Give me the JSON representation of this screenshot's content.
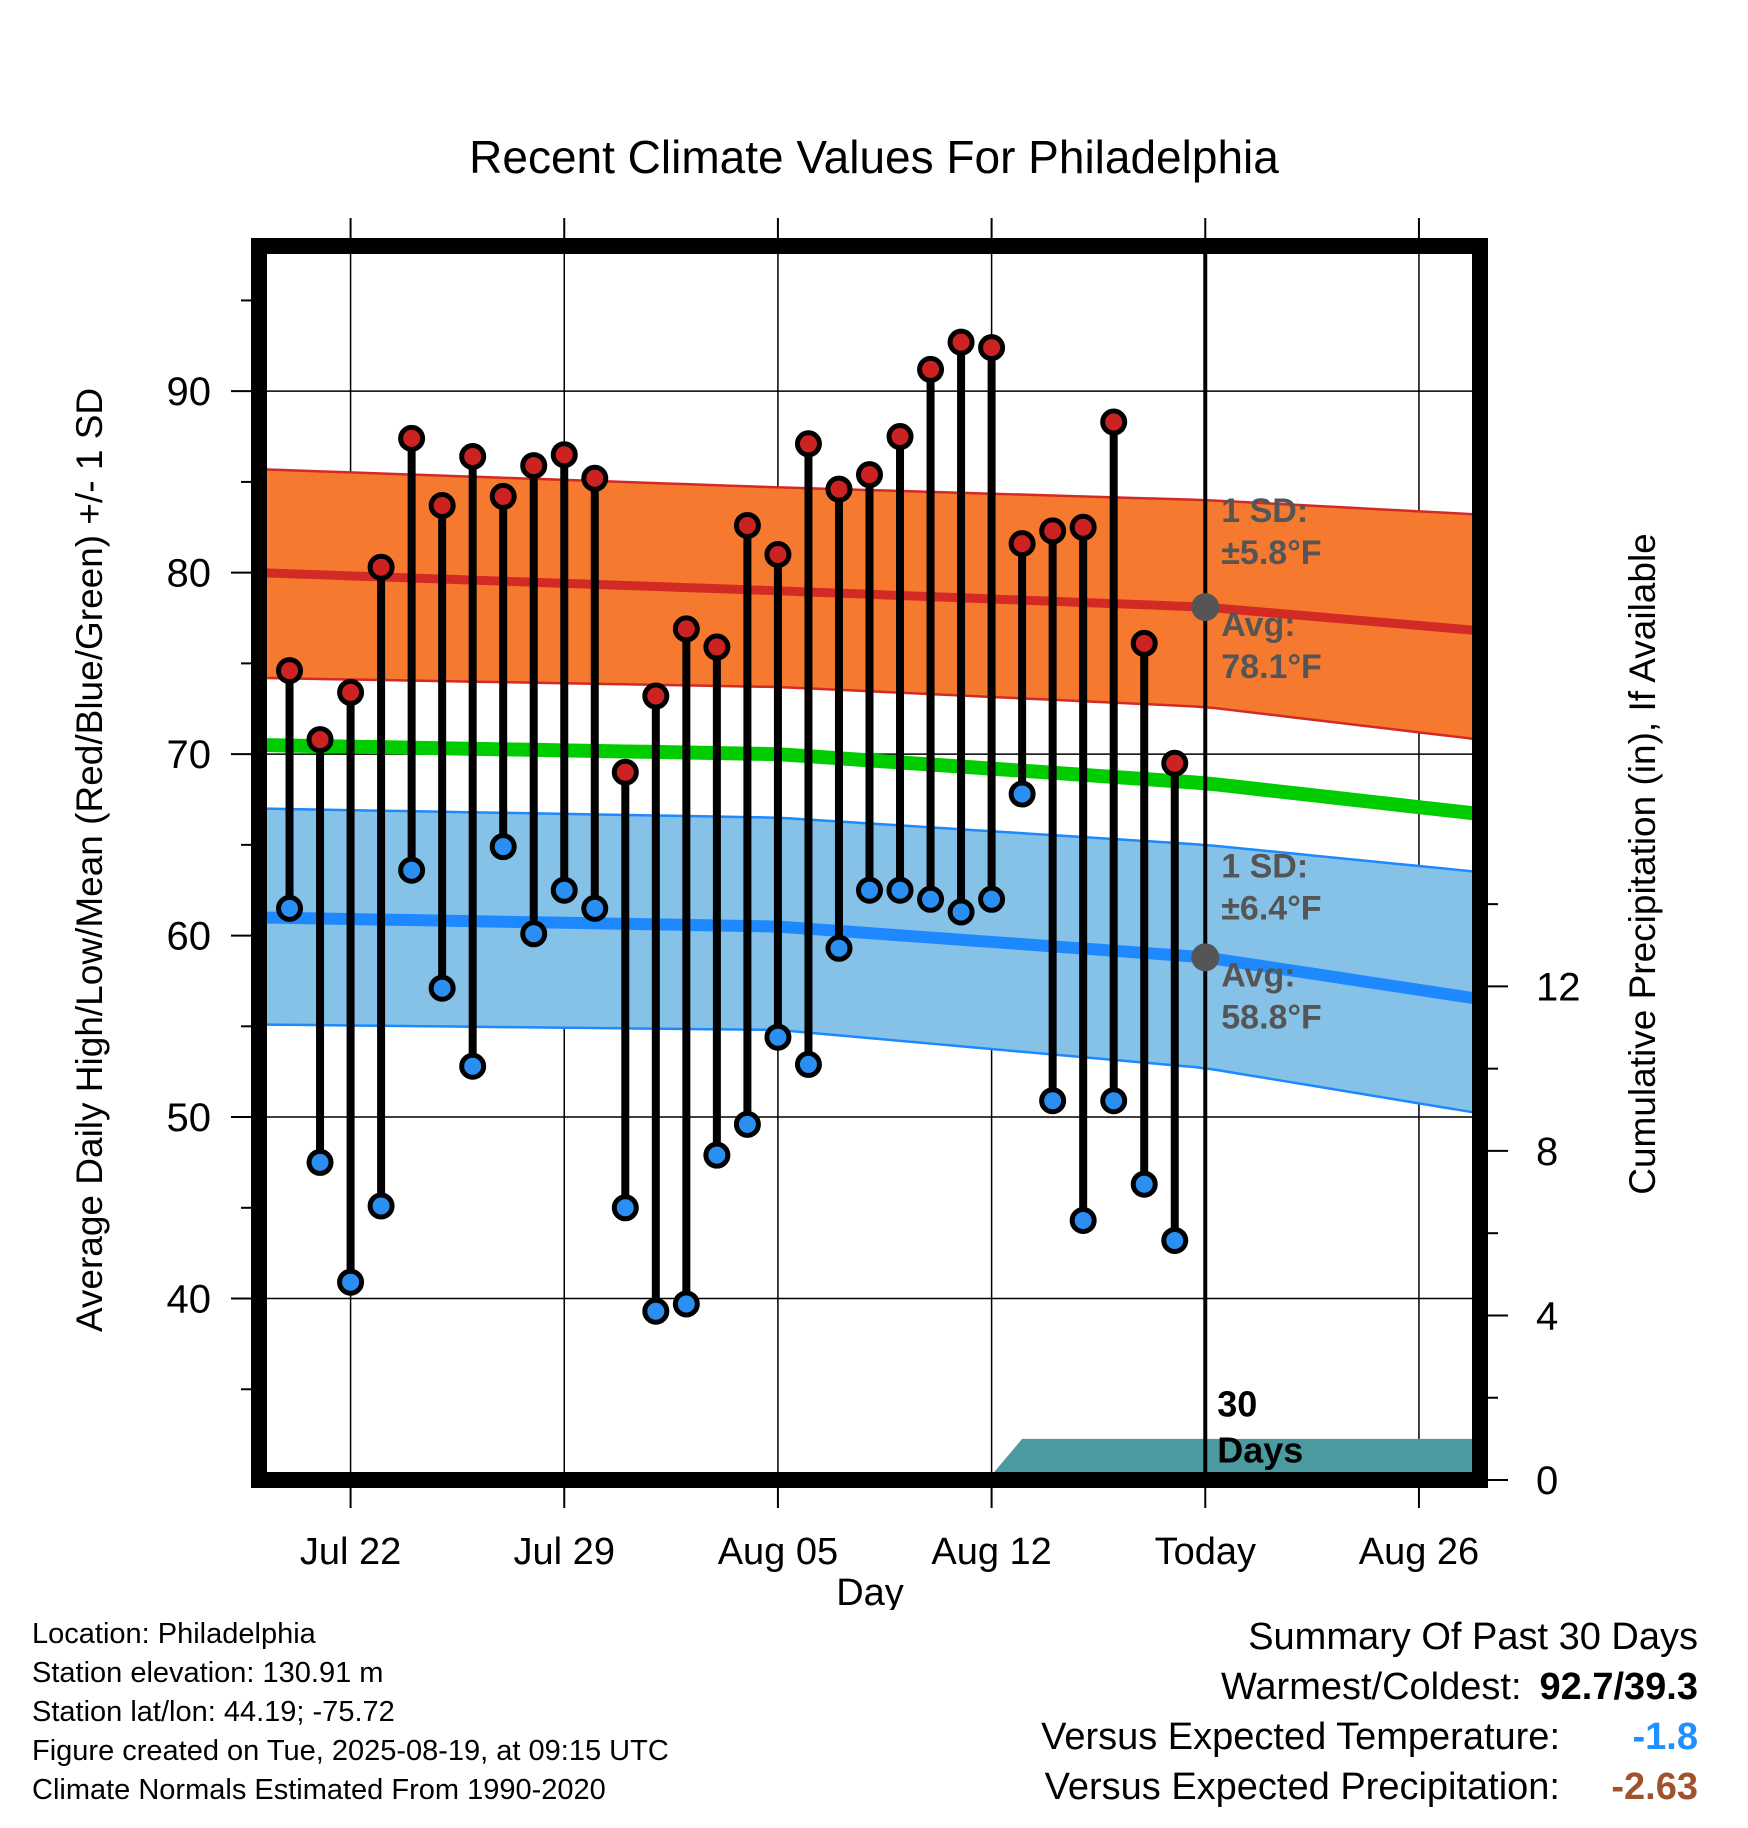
{
  "chart_data": {
    "type": "line",
    "title": "Recent Climate Values For Philadelphia",
    "xlabel": "Day",
    "ylabel": "Average Daily High/Low/Mean (Red/Blue/Green) +/- 1 SD",
    "y2label": "Cumulative Precipitation (in), If Available",
    "ylim": [
      30,
      98
    ],
    "y2lim": [
      0,
      30
    ],
    "yticks": [
      40,
      50,
      60,
      70,
      80,
      90
    ],
    "y2ticks": [
      0,
      4,
      8,
      12
    ],
    "xticks": [
      {
        "date": "2025-07-22",
        "label": "Jul 22"
      },
      {
        "date": "2025-07-29",
        "label": "Jul 29"
      },
      {
        "date": "2025-08-05",
        "label": "Aug 05"
      },
      {
        "date": "2025-08-12",
        "label": "Aug 12"
      },
      {
        "date": "2025-08-19",
        "label": "Today"
      },
      {
        "date": "2025-08-26",
        "label": "Aug 26"
      }
    ],
    "xlim": [
      "2025-07-19",
      "2025-08-28"
    ],
    "today": "2025-08-19",
    "days_label": "30\nDays",
    "high_normal": {
      "dates": [
        "2025-07-19",
        "2025-08-05",
        "2025-08-19",
        "2025-08-28"
      ],
      "mean": [
        80.0,
        79.0,
        78.1,
        76.8
      ],
      "upper": [
        85.7,
        84.7,
        84.0,
        83.2
      ],
      "lower": [
        74.2,
        73.7,
        72.6,
        70.8
      ]
    },
    "mean_normal": {
      "dates": [
        "2025-07-19",
        "2025-08-05",
        "2025-08-19",
        "2025-08-28"
      ],
      "mean": [
        70.5,
        70.0,
        68.4,
        66.7
      ]
    },
    "low_normal": {
      "dates": [
        "2025-07-19",
        "2025-08-05",
        "2025-08-19",
        "2025-08-28"
      ],
      "mean": [
        61.0,
        60.5,
        58.8,
        56.5
      ],
      "upper": [
        67.0,
        66.5,
        65.0,
        63.5
      ],
      "lower": [
        55.1,
        54.8,
        52.7,
        50.2
      ]
    },
    "high_annotation": {
      "sd": "1 SD:",
      "sd_value": "±5.8°F",
      "avg": "Avg:",
      "avg_value": "78.1°F"
    },
    "low_annotation": {
      "sd": "1 SD:",
      "sd_value": "±6.4°F",
      "avg": "Avg:",
      "avg_value": "58.8°F"
    },
    "observations": {
      "dates": [
        "2025-07-20",
        "2025-07-21",
        "2025-07-22",
        "2025-07-23",
        "2025-07-24",
        "2025-07-25",
        "2025-07-26",
        "2025-07-27",
        "2025-07-28",
        "2025-07-29",
        "2025-07-30",
        "2025-07-31",
        "2025-08-01",
        "2025-08-02",
        "2025-08-03",
        "2025-08-04",
        "2025-08-05",
        "2025-08-06",
        "2025-08-07",
        "2025-08-08",
        "2025-08-09",
        "2025-08-10",
        "2025-08-11",
        "2025-08-12",
        "2025-08-13",
        "2025-08-14",
        "2025-08-15",
        "2025-08-16",
        "2025-08-17",
        "2025-08-18"
      ],
      "high": [
        74.6,
        70.8,
        73.4,
        80.3,
        87.4,
        83.7,
        86.4,
        84.2,
        85.9,
        86.5,
        85.2,
        69.0,
        73.2,
        76.9,
        75.9,
        82.6,
        81.0,
        87.1,
        84.6,
        85.4,
        87.5,
        91.2,
        92.7,
        92.4,
        81.6,
        82.3,
        82.5,
        88.3,
        76.1,
        69.5
      ],
      "low": [
        61.5,
        47.5,
        40.9,
        45.1,
        63.6,
        57.1,
        52.8,
        64.9,
        60.1,
        62.5,
        61.5,
        45.0,
        39.3,
        39.7,
        47.9,
        49.6,
        54.4,
        52.9,
        59.3,
        62.5,
        62.5,
        62.0,
        61.3,
        62.0,
        67.8,
        50.9,
        44.3,
        50.9,
        46.3,
        43.2
      ]
    },
    "precipitation": {
      "dates": [
        "2025-07-19",
        "2025-07-26",
        "2025-07-27",
        "2025-08-11",
        "2025-08-12",
        "2025-08-13",
        "2025-08-28"
      ],
      "cumulative": [
        0,
        0,
        0.12,
        0.12,
        0.12,
        1.0,
        1.0
      ]
    }
  },
  "footer": {
    "location": "Location: Philadelphia",
    "elevation": "Station elevation: 130.91 m",
    "latlon": "Station lat/lon: 44.19; -75.72",
    "created": "Figure created on Tue, 2025-08-19, at 09:15 UTC",
    "normals": "Climate Normals Estimated From 1990-2020"
  },
  "summary": {
    "title": "Summary Of Past 30 Days",
    "warmest_label": "Warmest/Coldest:",
    "warmest_value": "92.7/39.3",
    "temp_label": "Versus Expected Temperature:",
    "temp_value": "-1.8",
    "precip_label": "Versus Expected Precipitation:",
    "precip_value": "-2.63",
    "colors": {
      "temp": "#1e90ff",
      "precip": "#a0522d"
    }
  },
  "colors": {
    "high_band": "#f57a30",
    "high_line": "#d42a25",
    "mean_line": "#00cc00",
    "low_band": "#86c2e8",
    "low_line": "#1e88ff",
    "precip_fill": "#4a9aa0",
    "annotation": "#555555",
    "high_marker": "#cc2222",
    "low_marker": "#2a8ff0"
  }
}
